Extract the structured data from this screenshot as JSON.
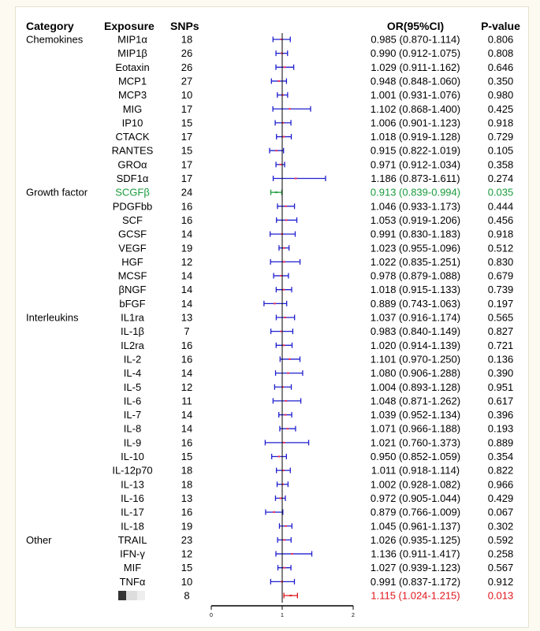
{
  "headers": {
    "category": "Category",
    "exposure": "Exposure",
    "snps": "SNPs",
    "or": "OR(95%CI)",
    "p": "P-value"
  },
  "colors": {
    "point": "#e8305a",
    "ci": "#1f1fcf",
    "highlight_green": "#1a9b3c",
    "highlight_red": "#e0151b"
  },
  "chart_data": {
    "type": "forest",
    "xlim": [
      0,
      2
    ],
    "reference_line": 1,
    "x_ticks": [
      "0",
      "1",
      "2"
    ],
    "rows": [
      {
        "category": "Chemokines",
        "exposure": "MIP1α",
        "snps": "18",
        "or": 0.985,
        "lo": 0.87,
        "hi": 1.114,
        "or_text": "0.985 (0.870-1.114)",
        "p": "0.806"
      },
      {
        "category": "",
        "exposure": "MIP1β",
        "snps": "26",
        "or": 0.99,
        "lo": 0.912,
        "hi": 1.075,
        "or_text": "0.990 (0.912-1.075)",
        "p": "0.808"
      },
      {
        "category": "",
        "exposure": "Eotaxin",
        "snps": "26",
        "or": 1.029,
        "lo": 0.911,
        "hi": 1.162,
        "or_text": "1.029 (0.911-1.162)",
        "p": "0.646"
      },
      {
        "category": "",
        "exposure": "MCP1",
        "snps": "27",
        "or": 0.948,
        "lo": 0.848,
        "hi": 1.06,
        "or_text": "0.948 (0.848-1.060)",
        "p": "0.350"
      },
      {
        "category": "",
        "exposure": "MCP3",
        "snps": "10",
        "or": 1.001,
        "lo": 0.931,
        "hi": 1.076,
        "or_text": "1.001 (0.931-1.076)",
        "p": "0.980"
      },
      {
        "category": "",
        "exposure": "MIG",
        "snps": "17",
        "or": 1.102,
        "lo": 0.868,
        "hi": 1.4,
        "or_text": "1.102 (0.868-1.400)",
        "p": "0.425"
      },
      {
        "category": "",
        "exposure": "IP10",
        "snps": "15",
        "or": 1.006,
        "lo": 0.901,
        "hi": 1.123,
        "or_text": "1.006 (0.901-1.123)",
        "p": "0.918"
      },
      {
        "category": "",
        "exposure": "CTACK",
        "snps": "17",
        "or": 1.018,
        "lo": 0.919,
        "hi": 1.128,
        "or_text": "1.018 (0.919-1.128)",
        "p": "0.729"
      },
      {
        "category": "",
        "exposure": "RANTES",
        "snps": "15",
        "or": 0.915,
        "lo": 0.822,
        "hi": 1.019,
        "or_text": "0.915 (0.822-1.019)",
        "p": "0.105"
      },
      {
        "category": "",
        "exposure": "GROα",
        "snps": "17",
        "or": 0.971,
        "lo": 0.912,
        "hi": 1.034,
        "or_text": "0.971 (0.912-1.034)",
        "p": "0.358"
      },
      {
        "category": "",
        "exposure": "SDF1α",
        "snps": "17",
        "or": 1.186,
        "lo": 0.873,
        "hi": 1.611,
        "or_text": "1.186 (0.873-1.611)",
        "p": "0.274"
      },
      {
        "category": "Growth factor",
        "exposure": "SCGFβ",
        "snps": "24",
        "or": 0.913,
        "lo": 0.839,
        "hi": 0.994,
        "or_text": "0.913 (0.839-0.994)",
        "p": "0.035",
        "highlight": "green"
      },
      {
        "category": "",
        "exposure": "PDGFbb",
        "snps": "16",
        "or": 1.046,
        "lo": 0.933,
        "hi": 1.173,
        "or_text": "1.046 (0.933-1.173)",
        "p": "0.444"
      },
      {
        "category": "",
        "exposure": "SCF",
        "snps": "16",
        "or": 1.053,
        "lo": 0.919,
        "hi": 1.206,
        "or_text": "1.053 (0.919-1.206)",
        "p": "0.456"
      },
      {
        "category": "",
        "exposure": "GCSF",
        "snps": "14",
        "or": 0.991,
        "lo": 0.83,
        "hi": 1.183,
        "or_text": "0.991 (0.830-1.183)",
        "p": "0.918"
      },
      {
        "category": "",
        "exposure": "VEGF",
        "snps": "19",
        "or": 1.023,
        "lo": 0.955,
        "hi": 1.096,
        "or_text": "1.023 (0.955-1.096)",
        "p": "0.512"
      },
      {
        "category": "",
        "exposure": "HGF",
        "snps": "12",
        "or": 1.022,
        "lo": 0.835,
        "hi": 1.251,
        "or_text": "1.022 (0.835-1.251)",
        "p": "0.830"
      },
      {
        "category": "",
        "exposure": "MCSF",
        "snps": "14",
        "or": 0.978,
        "lo": 0.879,
        "hi": 1.088,
        "or_text": "0.978 (0.879-1.088)",
        "p": "0.679"
      },
      {
        "category": "",
        "exposure": "βNGF",
        "snps": "14",
        "or": 1.018,
        "lo": 0.915,
        "hi": 1.133,
        "or_text": "1.018 (0.915-1.133)",
        "p": "0.739"
      },
      {
        "category": "",
        "exposure": "bFGF",
        "snps": "14",
        "or": 0.889,
        "lo": 0.743,
        "hi": 1.063,
        "or_text": "0.889 (0.743-1.063)",
        "p": "0.197"
      },
      {
        "category": "Interleukins",
        "exposure": "IL1ra",
        "snps": "13",
        "or": 1.037,
        "lo": 0.916,
        "hi": 1.174,
        "or_text": "1.037 (0.916-1.174)",
        "p": "0.565"
      },
      {
        "category": "",
        "exposure": "IL-1β",
        "snps": "7",
        "or": 0.983,
        "lo": 0.84,
        "hi": 1.149,
        "or_text": "0.983 (0.840-1.149)",
        "p": "0.827"
      },
      {
        "category": "",
        "exposure": "IL2ra",
        "snps": "16",
        "or": 1.02,
        "lo": 0.914,
        "hi": 1.139,
        "or_text": "1.020 (0.914-1.139)",
        "p": "0.721"
      },
      {
        "category": "",
        "exposure": "IL-2",
        "snps": "16",
        "or": 1.101,
        "lo": 0.97,
        "hi": 1.25,
        "or_text": "1.101 (0.970-1.250)",
        "p": "0.136"
      },
      {
        "category": "",
        "exposure": "IL-4",
        "snps": "14",
        "or": 1.08,
        "lo": 0.906,
        "hi": 1.288,
        "or_text": "1.080 (0.906-1.288)",
        "p": "0.390"
      },
      {
        "category": "",
        "exposure": "IL-5",
        "snps": "12",
        "or": 1.004,
        "lo": 0.893,
        "hi": 1.128,
        "or_text": "1.004 (0.893-1.128)",
        "p": "0.951"
      },
      {
        "category": "",
        "exposure": "IL-6",
        "snps": "11",
        "or": 1.048,
        "lo": 0.871,
        "hi": 1.262,
        "or_text": "1.048 (0.871-1.262)",
        "p": "0.617"
      },
      {
        "category": "",
        "exposure": "IL-7",
        "snps": "14",
        "or": 1.039,
        "lo": 0.952,
        "hi": 1.134,
        "or_text": "1.039 (0.952-1.134)",
        "p": "0.396"
      },
      {
        "category": "",
        "exposure": "IL-8",
        "snps": "14",
        "or": 1.071,
        "lo": 0.966,
        "hi": 1.188,
        "or_text": "1.071 (0.966-1.188)",
        "p": "0.193"
      },
      {
        "category": "",
        "exposure": "IL-9",
        "snps": "16",
        "or": 1.021,
        "lo": 0.76,
        "hi": 1.373,
        "or_text": "1.021 (0.760-1.373)",
        "p": "0.889"
      },
      {
        "category": "",
        "exposure": "IL-10",
        "snps": "15",
        "or": 0.95,
        "lo": 0.852,
        "hi": 1.059,
        "or_text": "0.950 (0.852-1.059)",
        "p": "0.354"
      },
      {
        "category": "",
        "exposure": "IL-12p70",
        "snps": "18",
        "or": 1.011,
        "lo": 0.918,
        "hi": 1.114,
        "or_text": "1.011 (0.918-1.114)",
        "p": "0.822"
      },
      {
        "category": "",
        "exposure": "IL-13",
        "snps": "18",
        "or": 1.002,
        "lo": 0.928,
        "hi": 1.082,
        "or_text": "1.002 (0.928-1.082)",
        "p": "0.966"
      },
      {
        "category": "",
        "exposure": "IL-16",
        "snps": "13",
        "or": 0.972,
        "lo": 0.905,
        "hi": 1.044,
        "or_text": "0.972 (0.905-1.044)",
        "p": "0.429"
      },
      {
        "category": "",
        "exposure": "IL-17",
        "snps": "16",
        "or": 0.879,
        "lo": 0.766,
        "hi": 1.009,
        "or_text": "0.879 (0.766-1.009)",
        "p": "0.067"
      },
      {
        "category": "",
        "exposure": "IL-18",
        "snps": "19",
        "or": 1.045,
        "lo": 0.961,
        "hi": 1.137,
        "or_text": "1.045 (0.961-1.137)",
        "p": "0.302"
      },
      {
        "category": "Other",
        "exposure": "TRAIL",
        "snps": "23",
        "or": 1.026,
        "lo": 0.935,
        "hi": 1.125,
        "or_text": "1.026 (0.935-1.125)",
        "p": "0.592"
      },
      {
        "category": "",
        "exposure": "IFN-γ",
        "snps": "12",
        "or": 1.136,
        "lo": 0.911,
        "hi": 1.417,
        "or_text": "1.136 (0.911-1.417)",
        "p": "0.258"
      },
      {
        "category": "",
        "exposure": "MIF",
        "snps": "15",
        "or": 1.027,
        "lo": 0.939,
        "hi": 1.123,
        "or_text": "1.027 (0.939-1.123)",
        "p": "0.567"
      },
      {
        "category": "",
        "exposure": "TNFα",
        "snps": "10",
        "or": 0.991,
        "lo": 0.837,
        "hi": 1.172,
        "or_text": "0.991 (0.837-1.172)",
        "p": "0.912"
      },
      {
        "category": "",
        "exposure": "",
        "snps": "8",
        "or": 1.115,
        "lo": 1.024,
        "hi": 1.215,
        "or_text": "1.115 (1.024-1.215)",
        "p": "0.013",
        "highlight": "red"
      }
    ]
  }
}
